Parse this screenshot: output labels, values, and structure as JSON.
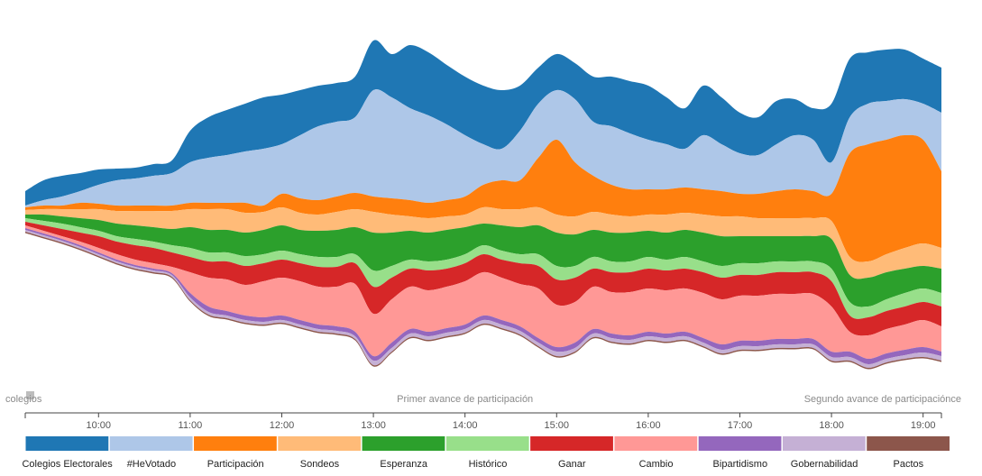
{
  "chart_data": {
    "type": "area",
    "subtype": "streamgraph",
    "title": "",
    "xlabel": "",
    "ylabel": "",
    "x_ticks": [
      "10:00",
      "11:00",
      "12:00",
      "13:00",
      "14:00",
      "15:00",
      "16:00",
      "17:00",
      "18:00",
      "19:00"
    ],
    "x_range_hours": [
      9.2,
      19.2
    ],
    "annotations": [
      {
        "time": 9.2,
        "text": "colegios"
      },
      {
        "time": 14.0,
        "text": "Primer avance de participación"
      },
      {
        "time": 19.2,
        "text": "Segundo avance de participaciónce"
      }
    ],
    "legend_position": "bottom",
    "series": [
      {
        "name": "Colegios Electorales",
        "color": "#1f77b4"
      },
      {
        "name": "#HeVotado",
        "color": "#aec7e8"
      },
      {
        "name": "Participación",
        "color": "#ff7f0e"
      },
      {
        "name": "Sondeos",
        "color": "#ffbb78"
      },
      {
        "name": "Esperanza",
        "color": "#2ca02c"
      },
      {
        "name": "Histórico",
        "color": "#98df8a"
      },
      {
        "name": "Ganar",
        "color": "#d62728"
      },
      {
        "name": "Cambio",
        "color": "#ff9896"
      },
      {
        "name": "Bipartidismo",
        "color": "#9467bd"
      },
      {
        "name": "Gobernabilidad",
        "color": "#c5b0d5"
      },
      {
        "name": "Pactos",
        "color": "#8c564b"
      }
    ],
    "x": [
      9.2,
      9.4,
      9.6,
      9.8,
      10.0,
      10.2,
      10.4,
      10.6,
      10.8,
      11.0,
      11.2,
      11.4,
      11.6,
      11.8,
      12.0,
      12.2,
      12.4,
      12.6,
      12.8,
      13.0,
      13.2,
      13.4,
      13.6,
      13.8,
      14.0,
      14.2,
      14.4,
      14.6,
      14.8,
      15.0,
      15.2,
      15.4,
      15.6,
      15.8,
      16.0,
      16.2,
      16.4,
      16.6,
      16.8,
      17.0,
      17.2,
      17.4,
      17.6,
      17.8,
      18.0,
      18.2,
      18.4,
      18.6,
      18.8,
      19.0,
      19.2
    ],
    "boundaries": {
      "top": [
        212,
        200,
        195,
        192,
        188,
        187,
        186,
        182,
        178,
        145,
        130,
        122,
        115,
        108,
        105,
        100,
        95,
        92,
        85,
        45,
        60,
        50,
        58,
        72,
        85,
        95,
        100,
        95,
        75,
        60,
        70,
        85,
        85,
        90,
        95,
        108,
        120,
        95,
        108,
        125,
        130,
        112,
        110,
        120,
        115,
        65,
        58,
        55,
        55,
        65,
        75
      ],
      "heVotado": [
        228,
        222,
        218,
        212,
        205,
        200,
        198,
        195,
        192,
        180,
        175,
        172,
        168,
        165,
        160,
        150,
        140,
        135,
        130,
        100,
        108,
        120,
        128,
        138,
        150,
        160,
        165,
        145,
        115,
        100,
        110,
        135,
        140,
        148,
        155,
        160,
        165,
        150,
        160,
        170,
        172,
        160,
        150,
        155,
        180,
        130,
        115,
        112,
        110,
        115,
        125
      ],
      "participacion": [
        230,
        228,
        228,
        225,
        226,
        228,
        228,
        228,
        228,
        225,
        225,
        225,
        225,
        228,
        215,
        220,
        222,
        218,
        214,
        218,
        220,
        222,
        225,
        222,
        218,
        205,
        200,
        200,
        175,
        155,
        180,
        195,
        205,
        210,
        210,
        210,
        208,
        210,
        212,
        215,
        215,
        212,
        210,
        212,
        215,
        170,
        160,
        155,
        150,
        155,
        190
      ],
      "sondeos": [
        233,
        232,
        232,
        232,
        232,
        234,
        234,
        234,
        234,
        232,
        232,
        232,
        236,
        235,
        230,
        236,
        238,
        235,
        232,
        235,
        238,
        240,
        242,
        240,
        238,
        230,
        232,
        232,
        230,
        238,
        240,
        235,
        238,
        240,
        238,
        238,
        236,
        238,
        240,
        240,
        242,
        242,
        242,
        242,
        245,
        285,
        290,
        282,
        275,
        270,
        275
      ],
      "esperanza": [
        238,
        238,
        240,
        242,
        244,
        248,
        250,
        252,
        254,
        252,
        255,
        255,
        258,
        255,
        250,
        255,
        256,
        255,
        252,
        258,
        258,
        256,
        258,
        255,
        252,
        248,
        250,
        252,
        250,
        258,
        260,
        255,
        258,
        258,
        256,
        258,
        255,
        258,
        262,
        262,
        262,
        262,
        262,
        262,
        265,
        305,
        308,
        302,
        298,
        295,
        298
      ],
      "historico": [
        242,
        245,
        248,
        252,
        256,
        262,
        265,
        268,
        272,
        275,
        280,
        280,
        284,
        282,
        278,
        282,
        285,
        285,
        282,
        300,
        295,
        288,
        290,
        288,
        282,
        272,
        278,
        282,
        282,
        295,
        295,
        285,
        290,
        290,
        285,
        288,
        285,
        290,
        295,
        292,
        292,
        290,
        290,
        290,
        298,
        335,
        340,
        332,
        325,
        320,
        325
      ],
      "ganar": [
        246,
        250,
        254,
        258,
        262,
        268,
        272,
        275,
        280,
        285,
        290,
        290,
        295,
        292,
        288,
        292,
        296,
        296,
        292,
        318,
        308,
        298,
        300,
        298,
        292,
        282,
        288,
        292,
        295,
        310,
        308,
        298,
        302,
        302,
        298,
        300,
        298,
        302,
        308,
        305,
        305,
        302,
        302,
        302,
        312,
        350,
        352,
        345,
        340,
        335,
        340
      ],
      "cambio": [
        250,
        256,
        262,
        268,
        275,
        282,
        288,
        292,
        296,
        302,
        308,
        310,
        316,
        312,
        308,
        312,
        318,
        318,
        315,
        348,
        332,
        318,
        322,
        318,
        312,
        302,
        308,
        315,
        320,
        338,
        335,
        318,
        324,
        324,
        320,
        322,
        320,
        325,
        332,
        328,
        328,
        326,
        326,
        326,
        340,
        368,
        372,
        365,
        360,
        355,
        362
      ],
      "bipartidismo": [
        253,
        259,
        265,
        272,
        280,
        288,
        294,
        298,
        303,
        325,
        340,
        345,
        350,
        352,
        350,
        355,
        360,
        362,
        368,
        395,
        380,
        365,
        368,
        364,
        360,
        350,
        355,
        362,
        375,
        385,
        380,
        365,
        370,
        372,
        368,
        370,
        368,
        375,
        382,
        378,
        378,
        376,
        376,
        376,
        390,
        390,
        398,
        392,
        388,
        385,
        390
      ],
      "gobernabilidad": [
        255,
        261,
        267,
        274,
        282,
        290,
        296,
        300,
        305,
        330,
        346,
        350,
        355,
        357,
        355,
        360,
        365,
        367,
        373,
        400,
        386,
        370,
        373,
        369,
        365,
        355,
        360,
        367,
        380,
        390,
        386,
        370,
        375,
        377,
        373,
        375,
        373,
        380,
        388,
        384,
        384,
        382,
        382,
        382,
        396,
        396,
        404,
        398,
        394,
        391,
        395
      ],
      "pactos": [
        257,
        263,
        269,
        276,
        284,
        292,
        298,
        302,
        307,
        333,
        349,
        353,
        358,
        360,
        358,
        363,
        368,
        370,
        376,
        405,
        390,
        374,
        377,
        373,
        369,
        359,
        364,
        371,
        384,
        395,
        390,
        374,
        379,
        381,
        377,
        379,
        377,
        384,
        392,
        388,
        388,
        386,
        386,
        386,
        400,
        400,
        408,
        402,
        398,
        396,
        400
      ]
    }
  }
}
